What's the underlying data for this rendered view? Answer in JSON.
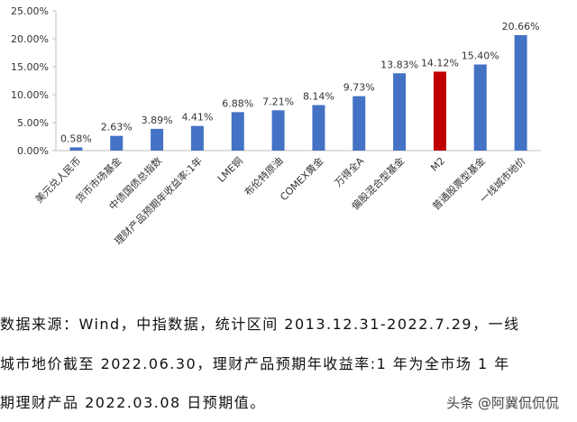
{
  "chart_data": {
    "type": "bar",
    "categories": [
      "美元兑人民币",
      "货币市场基金",
      "中债国债总指数",
      "理财产品预期年收益率:1年",
      "LME铜",
      "布伦特原油",
      "COMEX黄金",
      "万得全A",
      "偏股混合型基金",
      "M2",
      "普通股票型基金",
      "一线城市地价"
    ],
    "values": [
      0.58,
      2.63,
      3.89,
      4.41,
      6.88,
      7.21,
      8.14,
      9.73,
      13.83,
      14.12,
      15.4,
      20.66
    ],
    "data_labels": [
      "0.58%",
      "2.63%",
      "3.89%",
      "4.41%",
      "6.88%",
      "7.21%",
      "8.14%",
      "9.73%",
      "13.83%",
      "14.12%",
      "15.40%",
      "20.66%"
    ],
    "colors": [
      "#4472C4",
      "#4472C4",
      "#4472C4",
      "#4472C4",
      "#4472C4",
      "#4472C4",
      "#4472C4",
      "#4472C4",
      "#4472C4",
      "#C00000",
      "#4472C4",
      "#4472C4"
    ],
    "ylim": [
      0,
      25
    ],
    "yticks": [
      0,
      5,
      10,
      15,
      20,
      25
    ],
    "ytick_labels": [
      "0.00%",
      "5.00%",
      "10.00%",
      "15.00%",
      "20.00%",
      "25.00%"
    ],
    "grid": false,
    "title": "",
    "xlabel": "",
    "ylabel": ""
  },
  "notes": {
    "line1": "数据来源：Wind，中指数据，统计区间 2013.12.31-2022.7.29，一线",
    "line2": "城市地价截至 2022.06.30，理财产品预期年收益率:1 年为全市场 1 年",
    "line3": "期理财产品 2022.03.08 日预期值。"
  },
  "watermark": "头条 @阿冀侃侃侃"
}
